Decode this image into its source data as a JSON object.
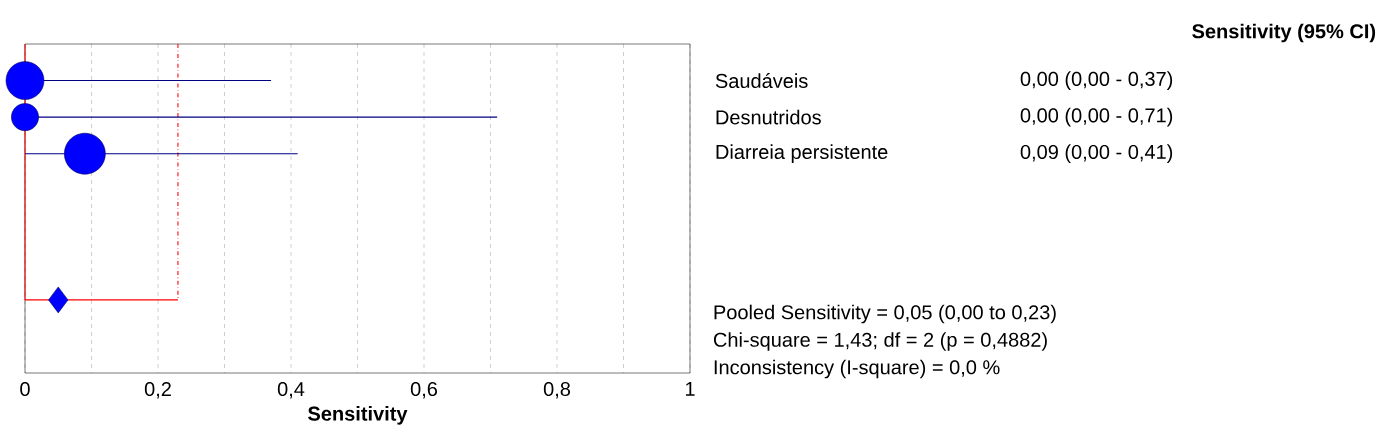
{
  "chart_data": {
    "type": "bubble",
    "orientation": "horizontal",
    "title": "Sensitivity (95% CI)",
    "xlabel": "Sensitivity",
    "categories": [
      "Saudáveis",
      "Desnutridos",
      "Diarreia persistente",
      null,
      null,
      null,
      null
    ],
    "series": [
      {
        "color": "#0000ff",
        "values": [
          0,
          0,
          0.09,
          null,
          null,
          null,
          null
        ],
        "sizes": [
          0.86,
          0.44,
          1,
          null,
          null,
          null,
          null
        ],
        "errors": [
          [
            0,
            0.37
          ],
          [
            0,
            0.71
          ],
          [
            0,
            0.41
          ],
          null,
          null,
          null,
          null
        ],
        "value_labels": [
          "0,00 (0,00 - 0,37)",
          "0,00 (0,00 - 0,71)",
          "0,09 (0,00 - 0,41)",
          null,
          null,
          null,
          null
        ]
      },
      {
        "type": "scatter",
        "marker": "diamond",
        "color": "#0000ff",
        "values": [
          null,
          null,
          null,
          null,
          null,
          null,
          0.05
        ],
        "errors": [
          null,
          null,
          null,
          null,
          null,
          null,
          [
            0,
            0.23
          ]
        ]
      }
    ],
    "xlim": [
      0,
      1
    ],
    "xticks": [
      0,
      {
        "value": 0.1,
        "label": null
      },
      {
        "value": 0.2,
        "label": "0,2"
      },
      {
        "value": 0.3,
        "label": null
      },
      {
        "value": 0.4,
        "label": "0,4"
      },
      {
        "value": 0.5,
        "label": null
      },
      {
        "value": 0.6,
        "label": "0,6"
      },
      {
        "value": 0.7,
        "label": null
      },
      {
        "value": 0.8,
        "label": "0,8"
      },
      {
        "value": 0.9,
        "label": null
      },
      1
    ],
    "grid": "x",
    "ref_lines": [
      {
        "axis": "x",
        "value": 0,
        "color": "#ff0000",
        "line_style": "solid"
      },
      {
        "axis": "x",
        "value": 0.23,
        "color": "#ff0000",
        "line_style": "dashed"
      }
    ],
    "annotations": [
      "Pooled Sensitivity = 0,05 (0,00 to 0,23)",
      "Chi-square = 1,43; df =  2 (p = 0,4882)",
      "Inconsistency (I-square) = 0,0 %"
    ]
  }
}
